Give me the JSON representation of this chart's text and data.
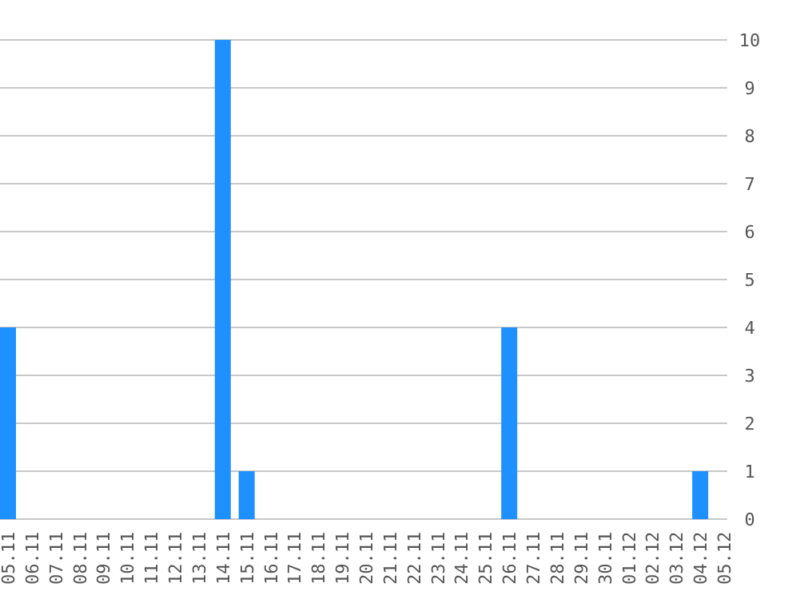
{
  "chart_data": {
    "type": "bar",
    "categories": [
      "05.11",
      "06.11",
      "07.11",
      "08.11",
      "09.11",
      "10.11",
      "11.11",
      "12.11",
      "13.11",
      "14.11",
      "15.11",
      "16.11",
      "17.11",
      "18.11",
      "19.11",
      "20.11",
      "21.11",
      "22.11",
      "23.11",
      "24.11",
      "25.11",
      "26.11",
      "27.11",
      "28.11",
      "29.11",
      "30.11",
      "01.12",
      "02.12",
      "03.12",
      "04.12",
      "05.12"
    ],
    "values": [
      4,
      0,
      0,
      0,
      0,
      0,
      0,
      0,
      0,
      10,
      1,
      0,
      0,
      0,
      0,
      0,
      0,
      0,
      0,
      0,
      0,
      4,
      0,
      0,
      0,
      0,
      0,
      0,
      0,
      1,
      0
    ],
    "color": "#1e90ff",
    "ylim": [
      0,
      10
    ],
    "yticks": [
      0,
      1,
      2,
      3,
      4,
      5,
      6,
      7,
      8,
      9,
      10
    ],
    "grid": "y"
  }
}
